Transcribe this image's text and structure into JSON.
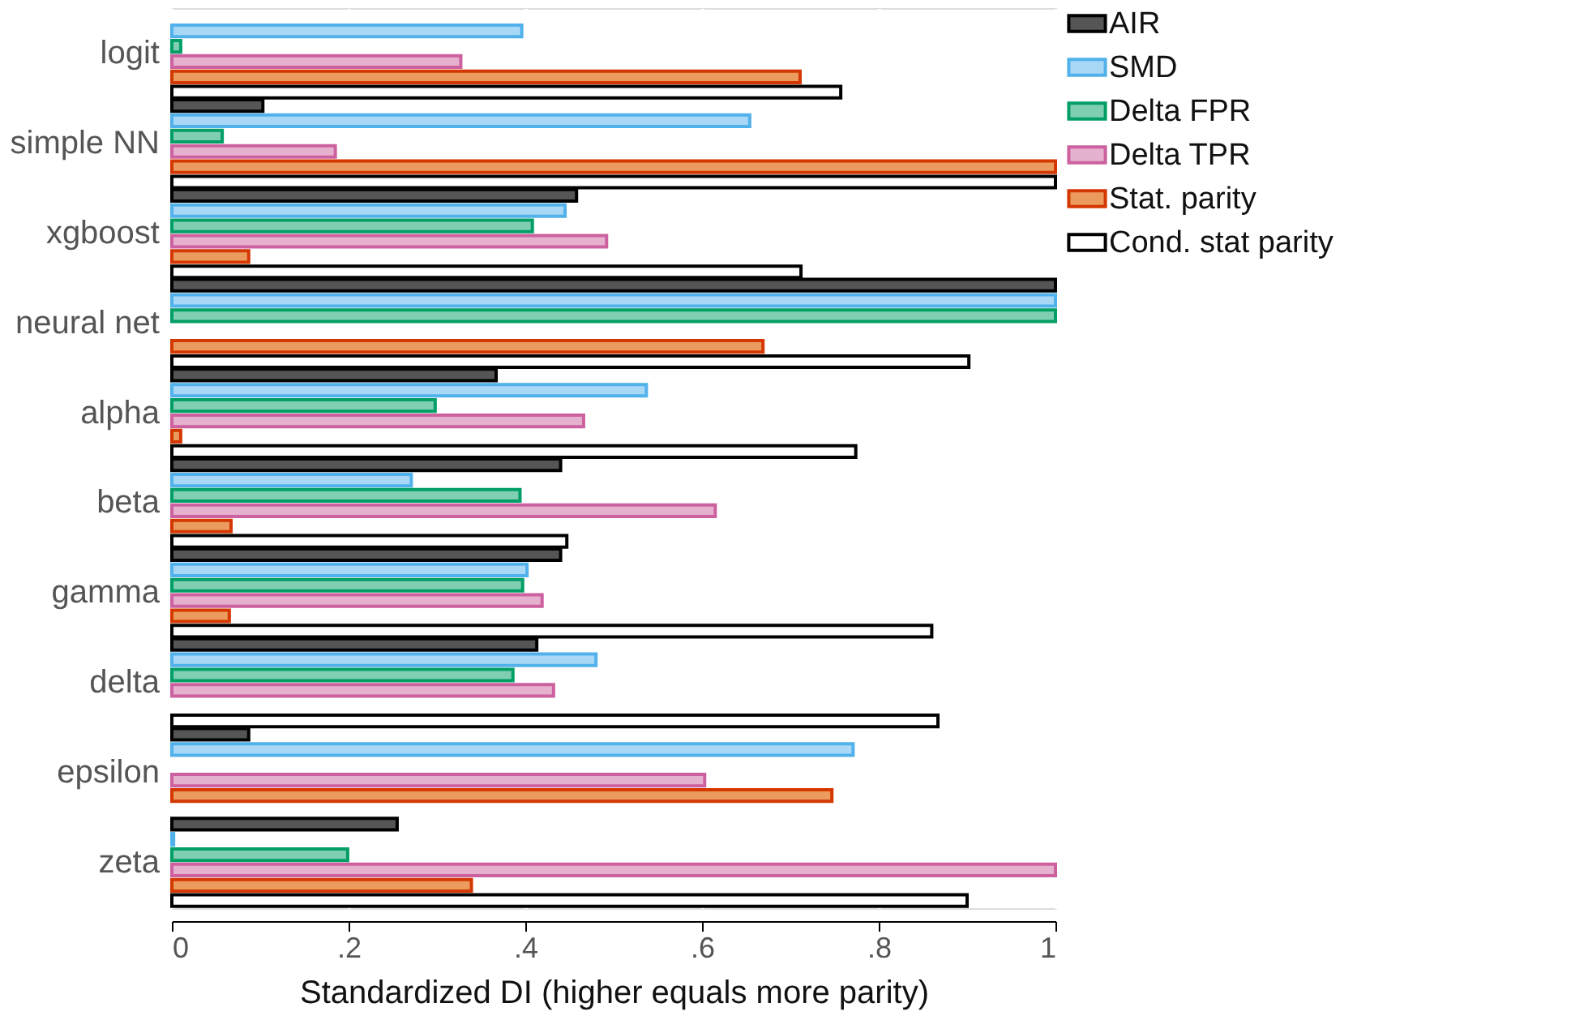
{
  "chart_data": {
    "type": "bar",
    "orientation": "horizontal",
    "xlabel": "Standardized DI (higher equals more parity)",
    "categories": [
      "logit",
      "simple NN",
      "xgboost",
      "neural net",
      "alpha",
      "beta",
      "gamma",
      "delta",
      "epsilon",
      "zeta"
    ],
    "series": [
      {
        "name": "AIR",
        "color": "#555555",
        "values": [
          null,
          0.103,
          0.458,
          1.0,
          0.367,
          0.44,
          0.44,
          0.413,
          0.087,
          0.255
        ]
      },
      {
        "name": "SMD",
        "color": "#a8d8f5",
        "values": [
          0.396,
          0.654,
          0.445,
          1.0,
          0.537,
          0.271,
          0.402,
          0.48,
          0.771,
          0.002
        ]
      },
      {
        "name": "Delta FPR",
        "color": "#80cfb2",
        "values": [
          0.01,
          0.057,
          0.408,
          1.0,
          0.298,
          0.394,
          0.397,
          0.386,
          null,
          0.199
        ]
      },
      {
        "name": "Delta TPR",
        "color": "#e6b0cf",
        "values": [
          0.327,
          0.185,
          0.492,
          null,
          0.466,
          0.615,
          0.419,
          0.432,
          0.603,
          1.0
        ]
      },
      {
        "name": "Stat. parity",
        "color": "#ea9b5d",
        "values": [
          0.711,
          1.0,
          0.087,
          0.669,
          0.01,
          0.067,
          0.065,
          null,
          0.747,
          0.339
        ]
      },
      {
        "name": "Cond. stat parity",
        "color": "#ffffff",
        "values": [
          0.757,
          1.0,
          0.712,
          0.902,
          0.774,
          0.447,
          0.86,
          0.867,
          null,
          0.9
        ]
      }
    ],
    "xlim": [
      0,
      1
    ],
    "xticks": [
      0,
      {
        "value": 0.2,
        "label": ".2"
      },
      {
        "value": 0.4,
        "label": ".4"
      },
      {
        "value": 0.6,
        "label": ".6"
      },
      {
        "value": 0.8,
        "label": ".8"
      },
      1
    ],
    "grid": "x",
    "legend": "right"
  }
}
